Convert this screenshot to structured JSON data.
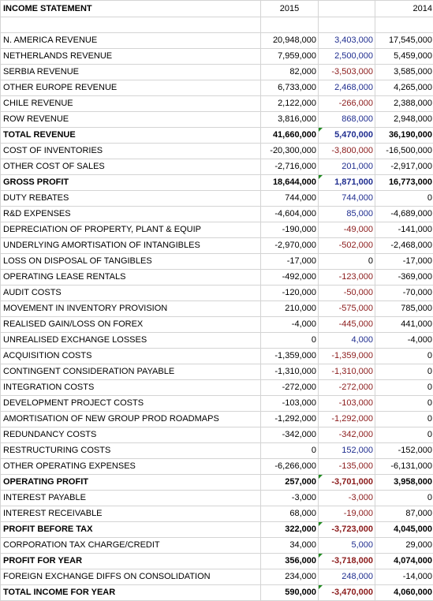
{
  "header": {
    "title": "INCOME STATEMENT",
    "col_2015": "2015",
    "col_change": "",
    "col_2014": "2014"
  },
  "rows": [
    {
      "label": "N. AMERICA REVENUE",
      "v2015": "20,948,000",
      "chg": "3,403,000",
      "v2014": "17,545,000",
      "bold": false,
      "chg_sign": "pos",
      "flag": false
    },
    {
      "label": "NETHERLANDS REVENUE",
      "v2015": "7,959,000",
      "chg": "2,500,000",
      "v2014": "5,459,000",
      "bold": false,
      "chg_sign": "pos",
      "flag": false
    },
    {
      "label": "SERBIA REVENUE",
      "v2015": "82,000",
      "chg": "-3,503,000",
      "v2014": "3,585,000",
      "bold": false,
      "chg_sign": "neg",
      "flag": false
    },
    {
      "label": "OTHER EUROPE REVENUE",
      "v2015": "6,733,000",
      "chg": "2,468,000",
      "v2014": "4,265,000",
      "bold": false,
      "chg_sign": "pos",
      "flag": false
    },
    {
      "label": "CHILE REVENUE",
      "v2015": "2,122,000",
      "chg": "-266,000",
      "v2014": "2,388,000",
      "bold": false,
      "chg_sign": "neg",
      "flag": false
    },
    {
      "label": "ROW REVENUE",
      "v2015": "3,816,000",
      "chg": "868,000",
      "v2014": "2,948,000",
      "bold": false,
      "chg_sign": "pos",
      "flag": false
    },
    {
      "label": "TOTAL REVENUE",
      "v2015": "41,660,000",
      "chg": "5,470,000",
      "v2014": "36,190,000",
      "bold": true,
      "chg_sign": "pos",
      "flag": true
    },
    {
      "label": "COST OF INVENTORIES",
      "v2015": "-20,300,000",
      "chg": "-3,800,000",
      "v2014": "-16,500,000",
      "bold": false,
      "chg_sign": "neg",
      "flag": false
    },
    {
      "label": "OTHER COST OF SALES",
      "v2015": "-2,716,000",
      "chg": "201,000",
      "v2014": "-2,917,000",
      "bold": false,
      "chg_sign": "pos",
      "flag": false
    },
    {
      "label": "GROSS PROFIT",
      "v2015": "18,644,000",
      "chg": "1,871,000",
      "v2014": "16,773,000",
      "bold": true,
      "chg_sign": "pos",
      "flag": true
    },
    {
      "label": "DUTY REBATES",
      "v2015": "744,000",
      "chg": "744,000",
      "v2014": "0",
      "bold": false,
      "chg_sign": "pos",
      "flag": false
    },
    {
      "label": "R&D EXPENSES",
      "v2015": "-4,604,000",
      "chg": "85,000",
      "v2014": "-4,689,000",
      "bold": false,
      "chg_sign": "pos",
      "flag": false
    },
    {
      "label": "DEPRECIATION OF PROPERTY, PLANT & EQUIP",
      "v2015": "-190,000",
      "chg": "-49,000",
      "v2014": "-141,000",
      "bold": false,
      "chg_sign": "neg",
      "flag": false
    },
    {
      "label": "UNDERLYING AMORTISATION OF INTANGIBLES",
      "v2015": "-2,970,000",
      "chg": "-502,000",
      "v2014": "-2,468,000",
      "bold": false,
      "chg_sign": "neg",
      "flag": false
    },
    {
      "label": "LOSS ON DISPOSAL OF TANGIBLES",
      "v2015": "-17,000",
      "chg": "0",
      "v2014": "-17,000",
      "bold": false,
      "chg_sign": "zero",
      "flag": false
    },
    {
      "label": "OPERATING LEASE RENTALS",
      "v2015": "-492,000",
      "chg": "-123,000",
      "v2014": "-369,000",
      "bold": false,
      "chg_sign": "neg",
      "flag": false
    },
    {
      "label": "AUDIT COSTS",
      "v2015": "-120,000",
      "chg": "-50,000",
      "v2014": "-70,000",
      "bold": false,
      "chg_sign": "neg",
      "flag": false
    },
    {
      "label": "MOVEMENT IN INVENTORY PROVISION",
      "v2015": "210,000",
      "chg": "-575,000",
      "v2014": "785,000",
      "bold": false,
      "chg_sign": "neg",
      "flag": false
    },
    {
      "label": "REALISED GAIN/LOSS ON FOREX",
      "v2015": "-4,000",
      "chg": "-445,000",
      "v2014": "441,000",
      "bold": false,
      "chg_sign": "neg",
      "flag": false
    },
    {
      "label": "UNREALISED EXCHANGE LOSSES",
      "v2015": "0",
      "chg": "4,000",
      "v2014": "-4,000",
      "bold": false,
      "chg_sign": "pos",
      "flag": false
    },
    {
      "label": "ACQUISITION COSTS",
      "v2015": "-1,359,000",
      "chg": "-1,359,000",
      "v2014": "0",
      "bold": false,
      "chg_sign": "neg",
      "flag": false
    },
    {
      "label": "CONTINGENT CONSIDERATION PAYABLE",
      "v2015": "-1,310,000",
      "chg": "-1,310,000",
      "v2014": "0",
      "bold": false,
      "chg_sign": "neg",
      "flag": false
    },
    {
      "label": "INTEGRATION COSTS",
      "v2015": "-272,000",
      "chg": "-272,000",
      "v2014": "0",
      "bold": false,
      "chg_sign": "neg",
      "flag": false
    },
    {
      "label": "DEVELOPMENT PROJECT COSTS",
      "v2015": "-103,000",
      "chg": "-103,000",
      "v2014": "0",
      "bold": false,
      "chg_sign": "neg",
      "flag": false
    },
    {
      "label": "AMORTISATION OF NEW GROUP PROD ROADMAPS",
      "v2015": "-1,292,000",
      "chg": "-1,292,000",
      "v2014": "0",
      "bold": false,
      "chg_sign": "neg",
      "flag": false
    },
    {
      "label": "REDUNDANCY COSTS",
      "v2015": "-342,000",
      "chg": "-342,000",
      "v2014": "0",
      "bold": false,
      "chg_sign": "neg",
      "flag": false
    },
    {
      "label": "RESTRUCTURING COSTS",
      "v2015": "0",
      "chg": "152,000",
      "v2014": "-152,000",
      "bold": false,
      "chg_sign": "pos",
      "flag": false
    },
    {
      "label": "OTHER OPERATING EXPENSES",
      "v2015": "-6,266,000",
      "chg": "-135,000",
      "v2014": "-6,131,000",
      "bold": false,
      "chg_sign": "neg",
      "flag": false
    },
    {
      "label": "OPERATING PROFIT",
      "v2015": "257,000",
      "chg": "-3,701,000",
      "v2014": "3,958,000",
      "bold": true,
      "chg_sign": "neg",
      "flag": true
    },
    {
      "label": "INTEREST PAYABLE",
      "v2015": "-3,000",
      "chg": "-3,000",
      "v2014": "0",
      "bold": false,
      "chg_sign": "neg",
      "flag": false
    },
    {
      "label": "INTEREST RECEIVABLE",
      "v2015": "68,000",
      "chg": "-19,000",
      "v2014": "87,000",
      "bold": false,
      "chg_sign": "neg",
      "flag": false
    },
    {
      "label": "PROFIT BEFORE TAX",
      "v2015": "322,000",
      "chg": "-3,723,000",
      "v2014": "4,045,000",
      "bold": true,
      "chg_sign": "neg",
      "flag": true
    },
    {
      "label": "CORPORATION TAX CHARGE/CREDIT",
      "v2015": "34,000",
      "chg": "5,000",
      "v2014": "29,000",
      "bold": false,
      "chg_sign": "pos",
      "flag": false
    },
    {
      "label": "PROFIT FOR YEAR",
      "v2015": "356,000",
      "chg": "-3,718,000",
      "v2014": "4,074,000",
      "bold": true,
      "chg_sign": "neg",
      "flag": true
    },
    {
      "label": "FOREIGN EXCHANGE DIFFS ON CONSOLIDATION",
      "v2015": "234,000",
      "chg": "248,000",
      "v2014": "-14,000",
      "bold": false,
      "chg_sign": "pos",
      "flag": false
    },
    {
      "label": "TOTAL INCOME FOR YEAR",
      "v2015": "590,000",
      "chg": "-3,470,000",
      "v2014": "4,060,000",
      "bold": true,
      "chg_sign": "neg",
      "flag": true
    }
  ],
  "colors": {
    "positive_change": "#1f2d8f",
    "negative_change": "#8b1a1a",
    "gridline": "#d4d4d4",
    "flag": "#1e8a1e"
  }
}
